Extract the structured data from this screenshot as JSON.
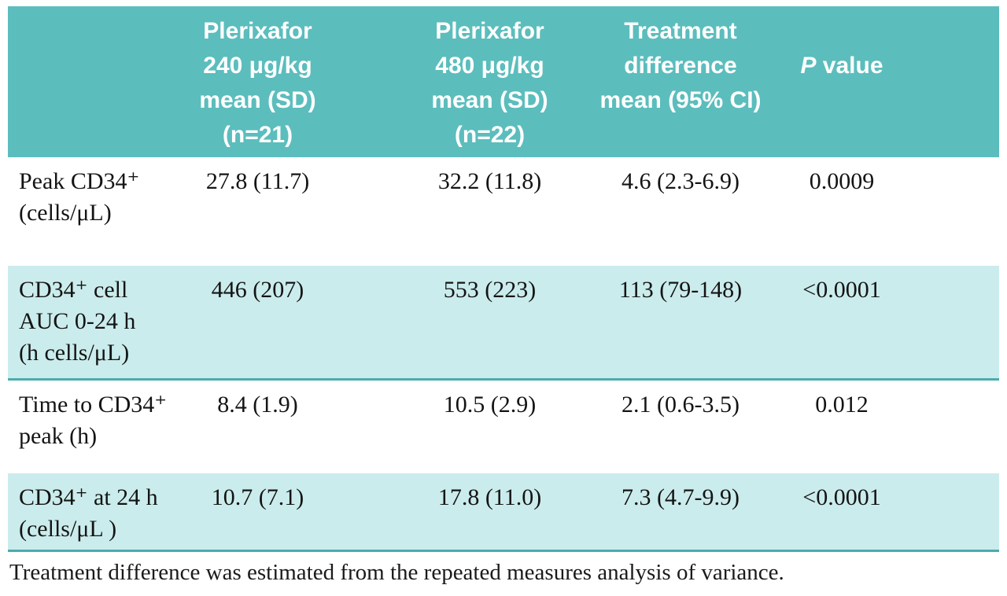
{
  "colors": {
    "header_bg": "#5cbdbd",
    "shaded_row_bg": "#cbecec",
    "divider": "#4aacad",
    "header_text": "#ffffff",
    "body_text": "#141414"
  },
  "header": {
    "label_col": "",
    "plerixafor_240": "Plerixafor\n240 μg/kg\nmean (SD)\n(n=21)",
    "plerixafor_480": "Plerixafor\n480 μg/kg\nmean (SD)\n(n=22)",
    "treatment_difference": "Treatment\ndifference\nmean (95% CI)",
    "p_value_italic": "P",
    "p_value_rest": " value"
  },
  "rows": [
    {
      "label": "Peak CD34⁺\n(cells/μL)",
      "dose240": "27.8 (11.7)",
      "dose480": "32.2 (11.8)",
      "difference": "4.6 (2.3-6.9)",
      "p_value": "0.0009",
      "shaded": false
    },
    {
      "label": "CD34⁺ cell\nAUC 0-24 h\n(h cells/μL)",
      "dose240": "446 (207)",
      "dose480": "553 (223)",
      "difference": "113 (79-148)",
      "p_value": "<0.0001",
      "shaded": true
    },
    {
      "label": "Time to CD34⁺\npeak (h)",
      "dose240": "8.4 (1.9)",
      "dose480": "10.5 (2.9)",
      "difference": "2.1 (0.6-3.5)",
      "p_value": "0.012",
      "shaded": false
    },
    {
      "label": "CD34⁺ at 24 h\n(cells/μL )",
      "dose240": "10.7 (7.1)",
      "dose480": "17.8 (11.0)",
      "difference": "7.3 (4.7-9.9)",
      "p_value": "<0.0001",
      "shaded": true
    }
  ],
  "footnote": "Treatment difference was estimated from the repeated measures analysis of variance."
}
